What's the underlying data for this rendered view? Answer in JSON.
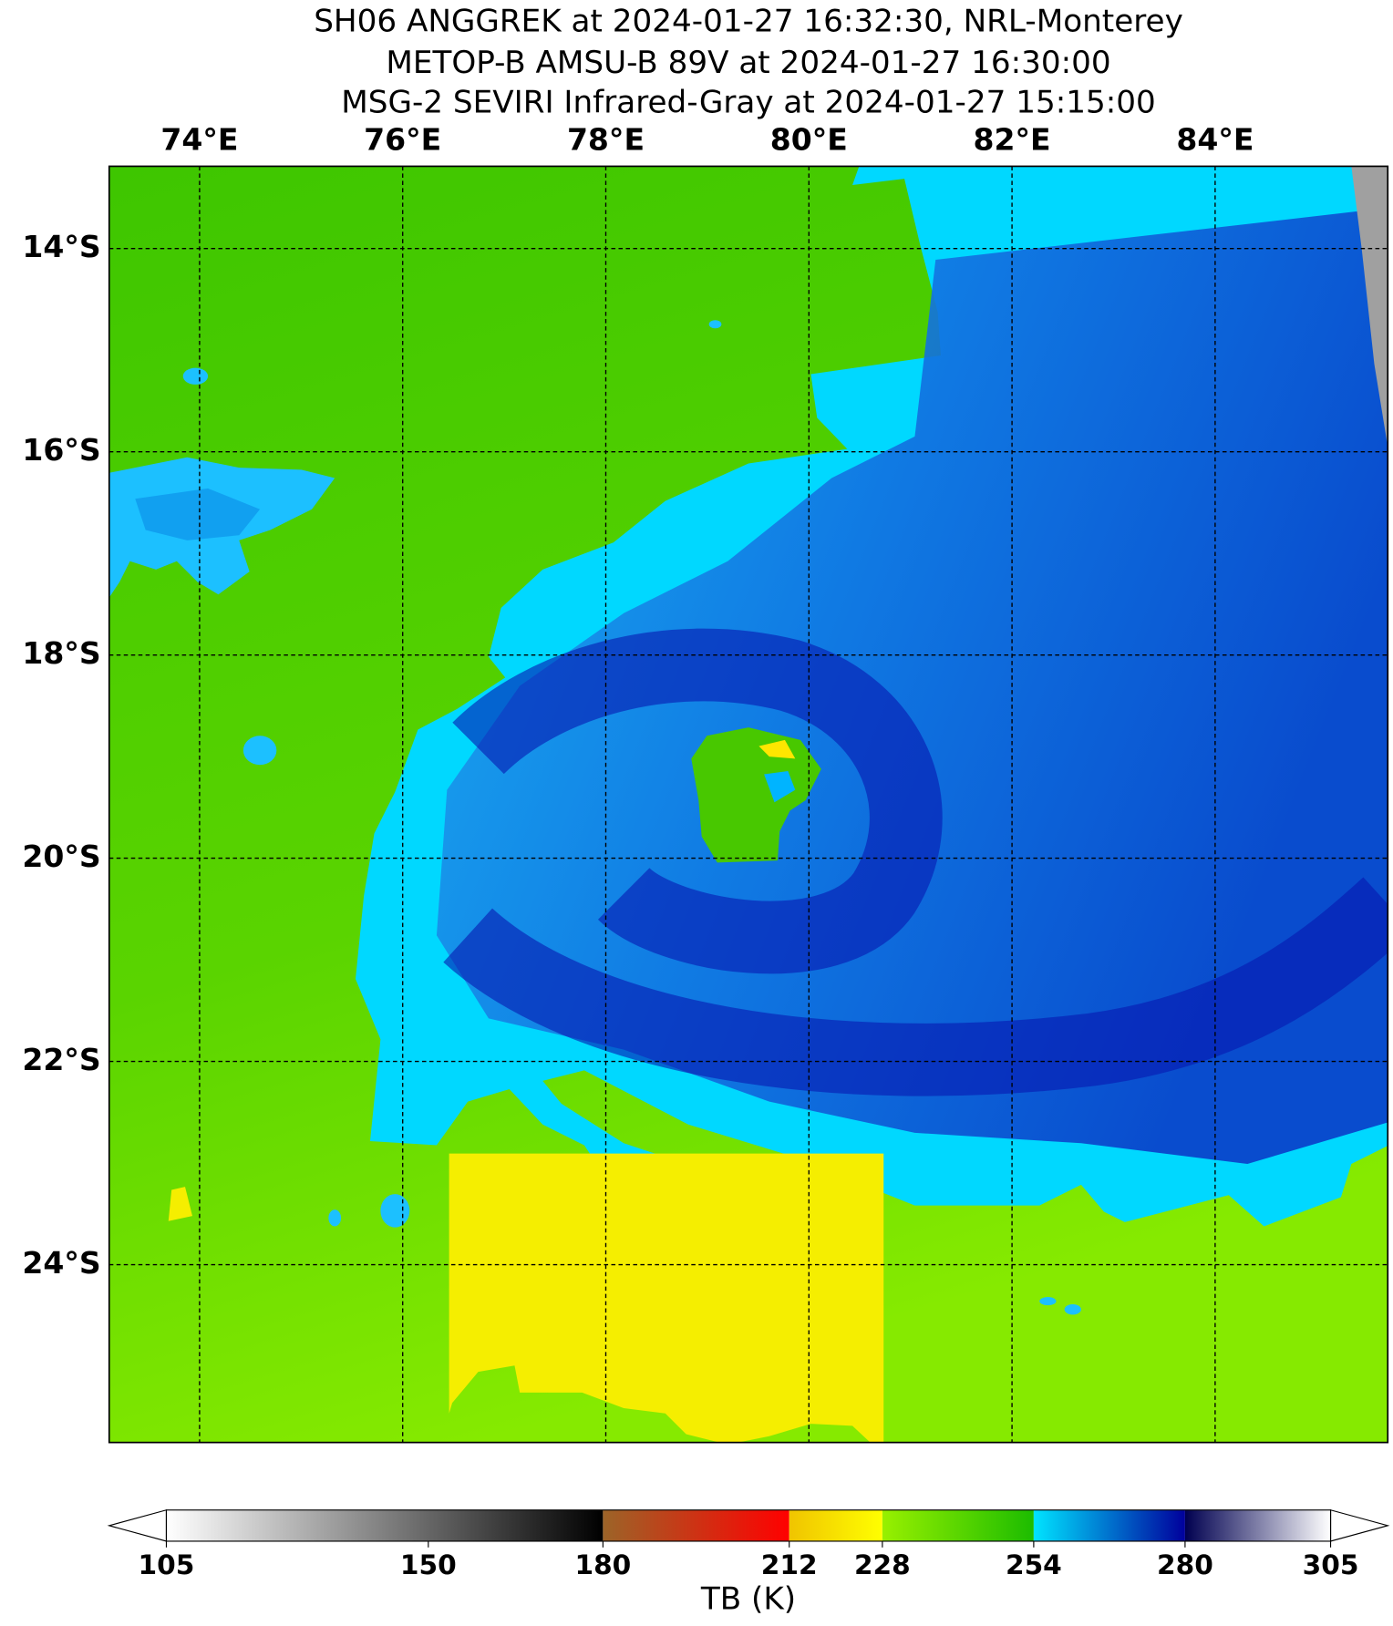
{
  "title_lines": [
    "SH06 ANGGREK at 2024-01-27 16:32:30, NRL-Monterey",
    "METOP-B AMSU-B 89V at 2024-01-27 16:30:00",
    "MSG-2 SEVIRI Infrared-Gray at 2024-01-27 15:15:00"
  ],
  "map": {
    "lon_range": [
      73.11,
      85.7
    ],
    "lat_range": [
      -13.19,
      -25.75
    ],
    "lon_ticks": [
      {
        "value": 74,
        "label": "74°E"
      },
      {
        "value": 76,
        "label": "76°E"
      },
      {
        "value": 78,
        "label": "78°E"
      },
      {
        "value": 80,
        "label": "80°E"
      },
      {
        "value": 82,
        "label": "82°E"
      },
      {
        "value": 84,
        "label": "84°E"
      }
    ],
    "lat_ticks": [
      {
        "value": -14,
        "label": "14°S"
      },
      {
        "value": -16,
        "label": "16°S"
      },
      {
        "value": -18,
        "label": "18°S"
      },
      {
        "value": -20,
        "label": "20°S"
      },
      {
        "value": -22,
        "label": "22°S"
      },
      {
        "value": -24,
        "label": "24°S"
      }
    ],
    "grid": true
  },
  "colorbar": {
    "label": "TB (K)",
    "range": [
      105,
      305
    ],
    "ticks": [
      105,
      150,
      180,
      212,
      228,
      254,
      280,
      305
    ],
    "segments": [
      {
        "from": 105,
        "to": 180,
        "colors": [
          "#ffffff",
          "#000000"
        ]
      },
      {
        "from": 180,
        "to": 212,
        "colors": [
          "#9c6428",
          "#ff0000"
        ]
      },
      {
        "from": 212,
        "to": 228,
        "colors": [
          "#f0c400",
          "#ffff00"
        ]
      },
      {
        "from": 228,
        "to": 254,
        "colors": [
          "#98f000",
          "#1cbc00"
        ]
      },
      {
        "from": 254,
        "to": 280,
        "colors": [
          "#00e4ff",
          "#00009c"
        ]
      },
      {
        "from": 280,
        "to": 305,
        "colors": [
          "#000050",
          "#ffffff"
        ]
      }
    ]
  }
}
